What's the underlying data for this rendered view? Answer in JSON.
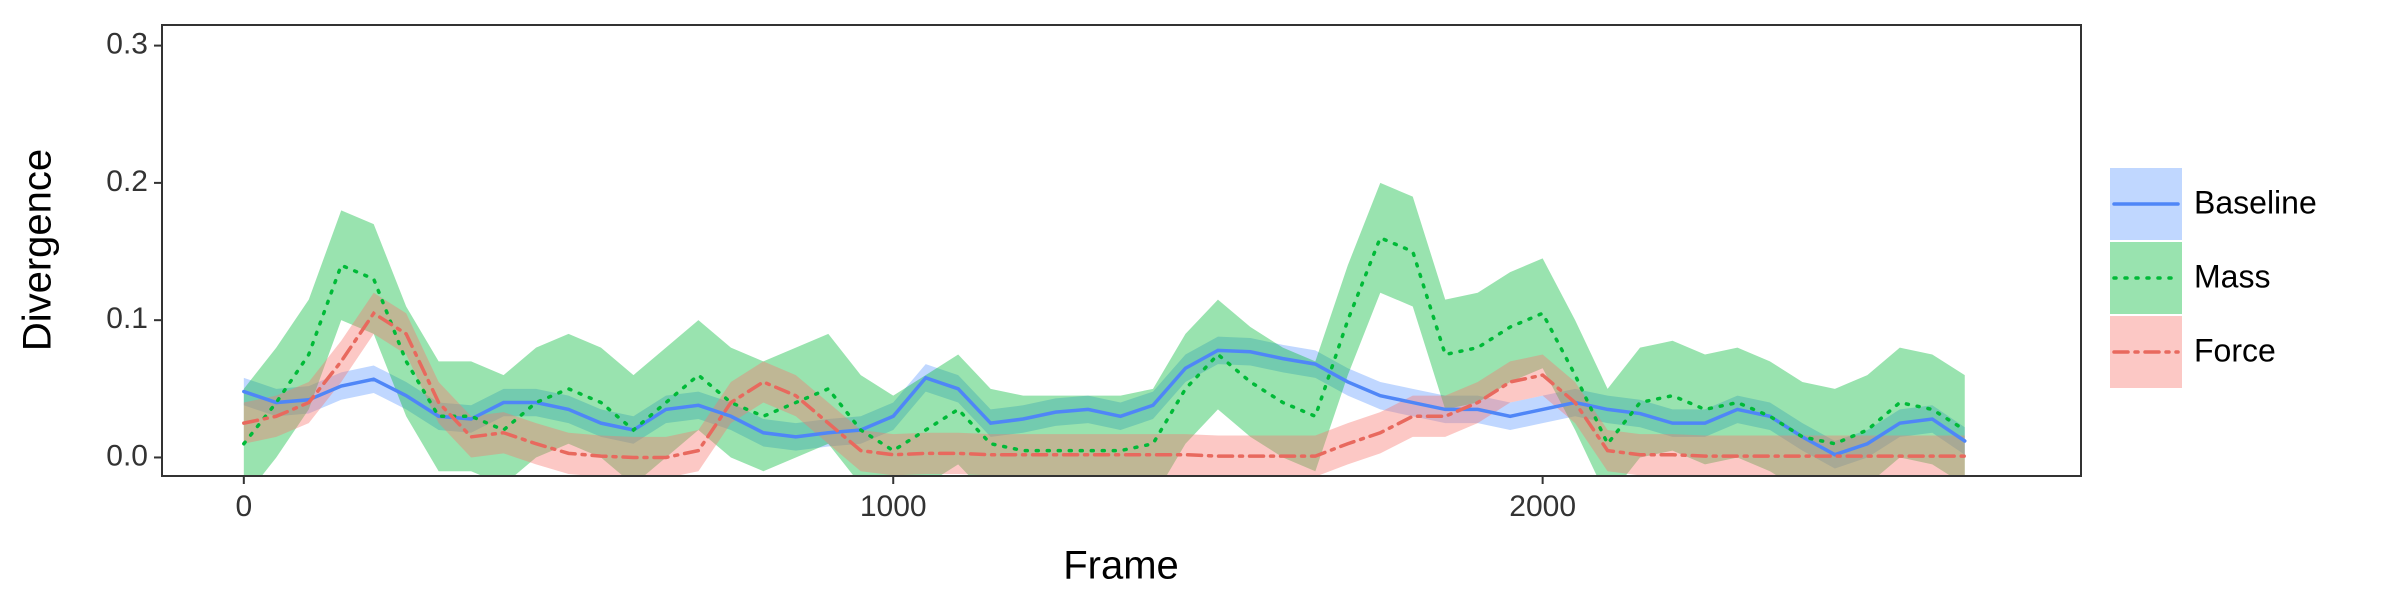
{
  "chart_data": {
    "type": "line",
    "xlabel": "Frame",
    "ylabel": "Divergence",
    "xlim": [
      -126,
      2829
    ],
    "ylim": [
      -0.0135,
      0.315
    ],
    "xticks": [
      0,
      1000,
      2000
    ],
    "yticks": [
      {
        "value": 0,
        "label": "0.0"
      },
      0.1,
      0.2,
      0.3
    ],
    "grid": false,
    "legend": "right",
    "x": [
      0,
      50,
      100,
      150,
      200,
      250,
      300,
      350,
      400,
      450,
      500,
      550,
      600,
      650,
      700,
      750,
      800,
      850,
      900,
      950,
      1000,
      1050,
      1100,
      1150,
      1200,
      1250,
      1300,
      1350,
      1400,
      1450,
      1500,
      1550,
      1600,
      1650,
      1700,
      1750,
      1800,
      1850,
      1900,
      1950,
      2000,
      2050,
      2100,
      2150,
      2200,
      2250,
      2300,
      2350,
      2400,
      2450,
      2500,
      2550,
      2600,
      2650
    ],
    "series": [
      {
        "name": "Baseline",
        "color": "#4f86f7",
        "fill": "#619CFF",
        "linestyle": "solid",
        "values": [
          0.048,
          0.04,
          0.042,
          0.052,
          0.057,
          0.045,
          0.03,
          0.028,
          0.04,
          0.04,
          0.035,
          0.025,
          0.02,
          0.035,
          0.038,
          0.03,
          0.018,
          0.015,
          0.018,
          0.02,
          0.03,
          0.058,
          0.05,
          0.025,
          0.028,
          0.033,
          0.035,
          0.03,
          0.038,
          0.065,
          0.078,
          0.077,
          0.072,
          0.068,
          0.055,
          0.045,
          0.04,
          0.035,
          0.035,
          0.03,
          0.035,
          0.04,
          0.035,
          0.032,
          0.025,
          0.025,
          0.035,
          0.03,
          0.015,
          0.002,
          0.01,
          0.025,
          0.028,
          0.012
        ],
        "lower": [
          0.038,
          0.03,
          0.032,
          0.042,
          0.047,
          0.035,
          0.02,
          0.018,
          0.03,
          0.03,
          0.025,
          0.015,
          0.01,
          0.025,
          0.028,
          0.02,
          0.008,
          0.005,
          0.008,
          0.01,
          0.02,
          0.048,
          0.04,
          0.015,
          0.018,
          0.023,
          0.025,
          0.02,
          0.028,
          0.055,
          0.068,
          0.067,
          0.062,
          0.058,
          0.045,
          0.035,
          0.03,
          0.025,
          0.025,
          0.02,
          0.025,
          0.03,
          0.025,
          0.022,
          0.015,
          0.015,
          0.025,
          0.02,
          0.005,
          -0.008,
          0.0,
          0.015,
          0.018,
          0.002
        ],
        "upper": [
          0.058,
          0.05,
          0.052,
          0.062,
          0.067,
          0.055,
          0.04,
          0.038,
          0.05,
          0.05,
          0.045,
          0.035,
          0.03,
          0.045,
          0.048,
          0.04,
          0.028,
          0.025,
          0.028,
          0.03,
          0.04,
          0.068,
          0.06,
          0.035,
          0.038,
          0.043,
          0.045,
          0.04,
          0.048,
          0.075,
          0.088,
          0.087,
          0.082,
          0.078,
          0.065,
          0.055,
          0.05,
          0.045,
          0.045,
          0.04,
          0.045,
          0.05,
          0.045,
          0.042,
          0.035,
          0.035,
          0.045,
          0.04,
          0.025,
          0.012,
          0.02,
          0.035,
          0.038,
          0.022
        ]
      },
      {
        "name": "Mass",
        "color": "#00BA38",
        "fill": "#00BA38",
        "linestyle": "dotted",
        "values": [
          0.01,
          0.04,
          0.075,
          0.14,
          0.13,
          0.07,
          0.03,
          0.03,
          0.02,
          0.04,
          0.05,
          0.04,
          0.02,
          0.04,
          0.06,
          0.04,
          0.03,
          0.04,
          0.05,
          0.02,
          0.005,
          0.02,
          0.035,
          0.01,
          0.005,
          0.005,
          0.005,
          0.005,
          0.01,
          0.05,
          0.075,
          0.055,
          0.04,
          0.03,
          0.1,
          0.16,
          0.15,
          0.075,
          0.08,
          0.095,
          0.105,
          0.06,
          0.01,
          0.04,
          0.045,
          0.035,
          0.04,
          0.03,
          0.015,
          0.01,
          0.02,
          0.04,
          0.035,
          0.02
        ],
        "lower": [
          -0.03,
          0.0,
          0.035,
          0.1,
          0.09,
          0.03,
          -0.01,
          -0.01,
          -0.02,
          0.0,
          0.01,
          0.0,
          -0.02,
          0.0,
          0.02,
          0.0,
          -0.01,
          0.0,
          0.01,
          -0.02,
          -0.035,
          -0.02,
          -0.005,
          -0.03,
          -0.035,
          -0.035,
          -0.035,
          -0.035,
          -0.03,
          0.01,
          0.035,
          0.015,
          0.0,
          -0.01,
          0.06,
          0.12,
          0.11,
          0.035,
          0.04,
          0.055,
          0.065,
          0.02,
          -0.03,
          0.0,
          0.005,
          -0.005,
          0.0,
          -0.01,
          -0.025,
          -0.03,
          -0.02,
          0.0,
          -0.005,
          -0.02
        ],
        "upper": [
          0.05,
          0.08,
          0.115,
          0.18,
          0.17,
          0.11,
          0.07,
          0.07,
          0.06,
          0.08,
          0.09,
          0.08,
          0.06,
          0.08,
          0.1,
          0.08,
          0.07,
          0.08,
          0.09,
          0.06,
          0.045,
          0.06,
          0.075,
          0.05,
          0.045,
          0.045,
          0.045,
          0.045,
          0.05,
          0.09,
          0.115,
          0.095,
          0.08,
          0.07,
          0.14,
          0.2,
          0.19,
          0.115,
          0.12,
          0.135,
          0.145,
          0.1,
          0.05,
          0.08,
          0.085,
          0.075,
          0.08,
          0.07,
          0.055,
          0.05,
          0.06,
          0.08,
          0.075,
          0.06
        ]
      },
      {
        "name": "Force",
        "color": "#E8695E",
        "fill": "#F8766D",
        "linestyle": "dashdot",
        "values": [
          0.025,
          0.03,
          0.04,
          0.07,
          0.105,
          0.09,
          0.04,
          0.015,
          0.018,
          0.01,
          0.003,
          0.001,
          0.0,
          0.0,
          0.005,
          0.04,
          0.055,
          0.045,
          0.025,
          0.005,
          0.002,
          0.003,
          0.003,
          0.002,
          0.002,
          0.002,
          0.002,
          0.002,
          0.002,
          0.002,
          0.001,
          0.001,
          0.001,
          0.001,
          0.01,
          0.018,
          0.03,
          0.03,
          0.04,
          0.055,
          0.06,
          0.04,
          0.005,
          0.002,
          0.002,
          0.001,
          0.001,
          0.001,
          0.001,
          0.001,
          0.001,
          0.001,
          0.001,
          0.001
        ],
        "lower": [
          0.01,
          0.015,
          0.025,
          0.055,
          0.09,
          0.075,
          0.025,
          0.0,
          0.003,
          -0.005,
          -0.012,
          -0.014,
          -0.015,
          -0.015,
          -0.01,
          0.025,
          0.04,
          0.03,
          0.01,
          -0.01,
          -0.013,
          -0.012,
          -0.012,
          -0.013,
          -0.013,
          -0.013,
          -0.013,
          -0.013,
          -0.013,
          -0.013,
          -0.014,
          -0.014,
          -0.014,
          -0.014,
          -0.005,
          0.003,
          0.015,
          0.015,
          0.025,
          0.04,
          0.045,
          0.025,
          -0.01,
          -0.013,
          -0.013,
          -0.014,
          -0.014,
          -0.014,
          -0.014,
          -0.014,
          -0.014,
          -0.014,
          -0.014,
          -0.014
        ],
        "upper": [
          0.04,
          0.045,
          0.055,
          0.085,
          0.12,
          0.105,
          0.055,
          0.03,
          0.033,
          0.025,
          0.018,
          0.016,
          0.015,
          0.015,
          0.02,
          0.055,
          0.07,
          0.06,
          0.04,
          0.02,
          0.017,
          0.018,
          0.018,
          0.017,
          0.017,
          0.017,
          0.017,
          0.017,
          0.017,
          0.017,
          0.016,
          0.016,
          0.016,
          0.016,
          0.025,
          0.033,
          0.045,
          0.045,
          0.055,
          0.07,
          0.075,
          0.055,
          0.02,
          0.017,
          0.017,
          0.016,
          0.016,
          0.016,
          0.016,
          0.016,
          0.016,
          0.016,
          0.016,
          0.016
        ]
      }
    ]
  }
}
